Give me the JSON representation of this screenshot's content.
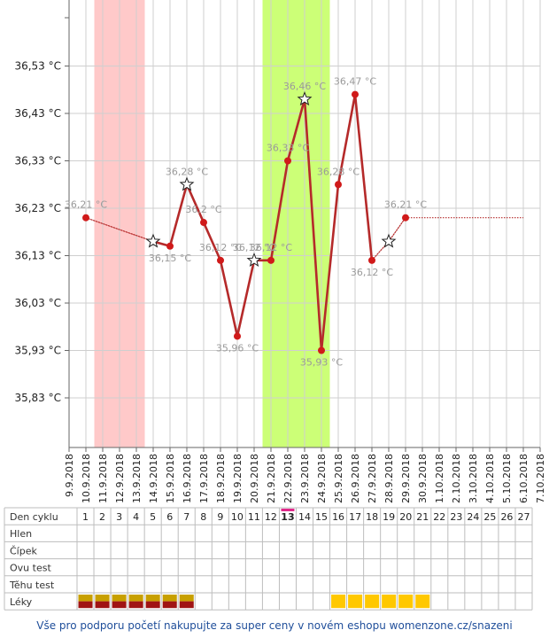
{
  "chart_data": {
    "type": "line",
    "x": [
      "9.9.2018",
      "10.9.2018",
      "11.9.2018",
      "12.9.2018",
      "13.9.2018",
      "14.9.2018",
      "15.9.2018",
      "16.9.2018",
      "17.9.2018",
      "18.9.2018",
      "19.9.2018",
      "20.9.2018",
      "21.9.2018",
      "22.9.2018",
      "23.9.2018",
      "24.9.2018",
      "25.9.2018",
      "26.9.2018",
      "27.9.2018",
      "28.9.2018",
      "29.9.2018",
      "30.9.2018",
      "1.10.2018",
      "2.10.2018",
      "3.10.2018",
      "4.10.2018",
      "5.10.2018",
      "6.10.2018",
      "7.10.2018"
    ],
    "y_ticks": [
      "36,53 °C",
      "36,43 °C",
      "36,33 °C",
      "36,23 °C",
      "36,13 °C",
      "36,03 °C",
      "35,93 °C",
      "35,83 °C"
    ],
    "y_tick_values": [
      36.53,
      36.43,
      36.33,
      36.23,
      36.13,
      36.03,
      35.93,
      35.83
    ],
    "ylim": [
      35.72,
      36.6
    ],
    "series": [
      {
        "points": [
          {
            "date": "10.9.2018",
            "value": 36.21,
            "label": "36,21 °C",
            "marker": "dot"
          },
          {
            "date": "14.9.2018",
            "value": 36.16,
            "label": "",
            "marker": "star"
          },
          {
            "date": "15.9.2018",
            "value": 36.15,
            "label": "36,15 °C",
            "marker": "dot"
          },
          {
            "date": "16.9.2018",
            "value": 36.28,
            "label": "36,28 °C",
            "marker": "star"
          },
          {
            "date": "17.9.2018",
            "value": 36.2,
            "label": "36,2 °C",
            "marker": "dot"
          },
          {
            "date": "18.9.2018",
            "value": 36.12,
            "label": "36,12 °C",
            "marker": "dot"
          },
          {
            "date": "19.9.2018",
            "value": 35.96,
            "label": "35,96 °C",
            "marker": "dot"
          },
          {
            "date": "20.9.2018",
            "value": 36.12,
            "label": "36,12 °C",
            "marker": "star"
          },
          {
            "date": "21.9.2018",
            "value": 36.12,
            "label": "36,12 °C",
            "marker": "dot"
          },
          {
            "date": "22.9.2018",
            "value": 36.33,
            "label": "36,33 °C",
            "marker": "dot"
          },
          {
            "date": "23.9.2018",
            "value": 36.46,
            "label": "36,46 °C",
            "marker": "star"
          },
          {
            "date": "24.9.2018",
            "value": 35.93,
            "label": "35,93 °C",
            "marker": "dot"
          },
          {
            "date": "25.9.2018",
            "value": 36.28,
            "label": "36,28 °C",
            "marker": "dot"
          },
          {
            "date": "26.9.2018",
            "value": 36.47,
            "label": "36,47 °C",
            "marker": "dot"
          },
          {
            "date": "27.9.2018",
            "value": 36.12,
            "label": "36,12 °C",
            "marker": "dot"
          },
          {
            "date": "28.9.2018",
            "value": 36.16,
            "label": "",
            "marker": "star"
          },
          {
            "date": "29.9.2018",
            "value": 36.21,
            "label": "36,21 °C",
            "marker": "dot"
          }
        ],
        "continuation_end": "6.10.2018",
        "dotted_segments": [
          [
            0,
            1
          ],
          [
            14,
            15
          ],
          [
            15,
            16
          ]
        ]
      }
    ],
    "bands": [
      {
        "from": "10.9.2018",
        "to": "13.9.2018",
        "kind": "menstruation",
        "color": "#ffc9c9"
      },
      {
        "from": "20.9.2018",
        "to": "24.9.2018",
        "kind": "fertile",
        "color": "#ccff77"
      },
      {
        "from": "22.9.2018",
        "to": "22.9.2018",
        "kind": "ovulation",
        "color": "#99dd44"
      }
    ],
    "colors": {
      "line": "#b52a2a",
      "dot": "#d01a1a",
      "value_label": "#9a9a9a",
      "grid": "#cfcfcf",
      "axis": "#666666"
    }
  },
  "table": {
    "rows": [
      "Den cyklu",
      "Hlen",
      "Čípek",
      "Ovu test",
      "Těhu test",
      "Léky"
    ],
    "cycle_days": [
      "1",
      "2",
      "3",
      "4",
      "5",
      "6",
      "7",
      "8",
      "9",
      "10",
      "11",
      "12",
      "13",
      "14",
      "15",
      "16",
      "17",
      "18",
      "19",
      "20",
      "21",
      "22",
      "23",
      "24",
      "25",
      "26",
      "27"
    ],
    "highlight_day": "13",
    "highlight_color": "#e0298a",
    "meds": [
      {
        "day": "1",
        "style": "dark"
      },
      {
        "day": "2",
        "style": "dark"
      },
      {
        "day": "3",
        "style": "dark"
      },
      {
        "day": "4",
        "style": "dark"
      },
      {
        "day": "5",
        "style": "dark"
      },
      {
        "day": "6",
        "style": "dark"
      },
      {
        "day": "7",
        "style": "dark"
      },
      {
        "day": "16",
        "style": "yellow"
      },
      {
        "day": "17",
        "style": "yellow"
      },
      {
        "day": "18",
        "style": "yellow"
      },
      {
        "day": "19",
        "style": "yellow"
      },
      {
        "day": "20",
        "style": "yellow"
      },
      {
        "day": "21",
        "style": "yellow"
      }
    ],
    "med_colors": {
      "dark_top": "#c8a000",
      "dark_bottom": "#a01414",
      "yellow": "#ffc800"
    }
  },
  "footer": {
    "text": "Vše pro podporu početí nakupujte za super ceny v novém eshopu womenzone.cz/snazeni"
  }
}
